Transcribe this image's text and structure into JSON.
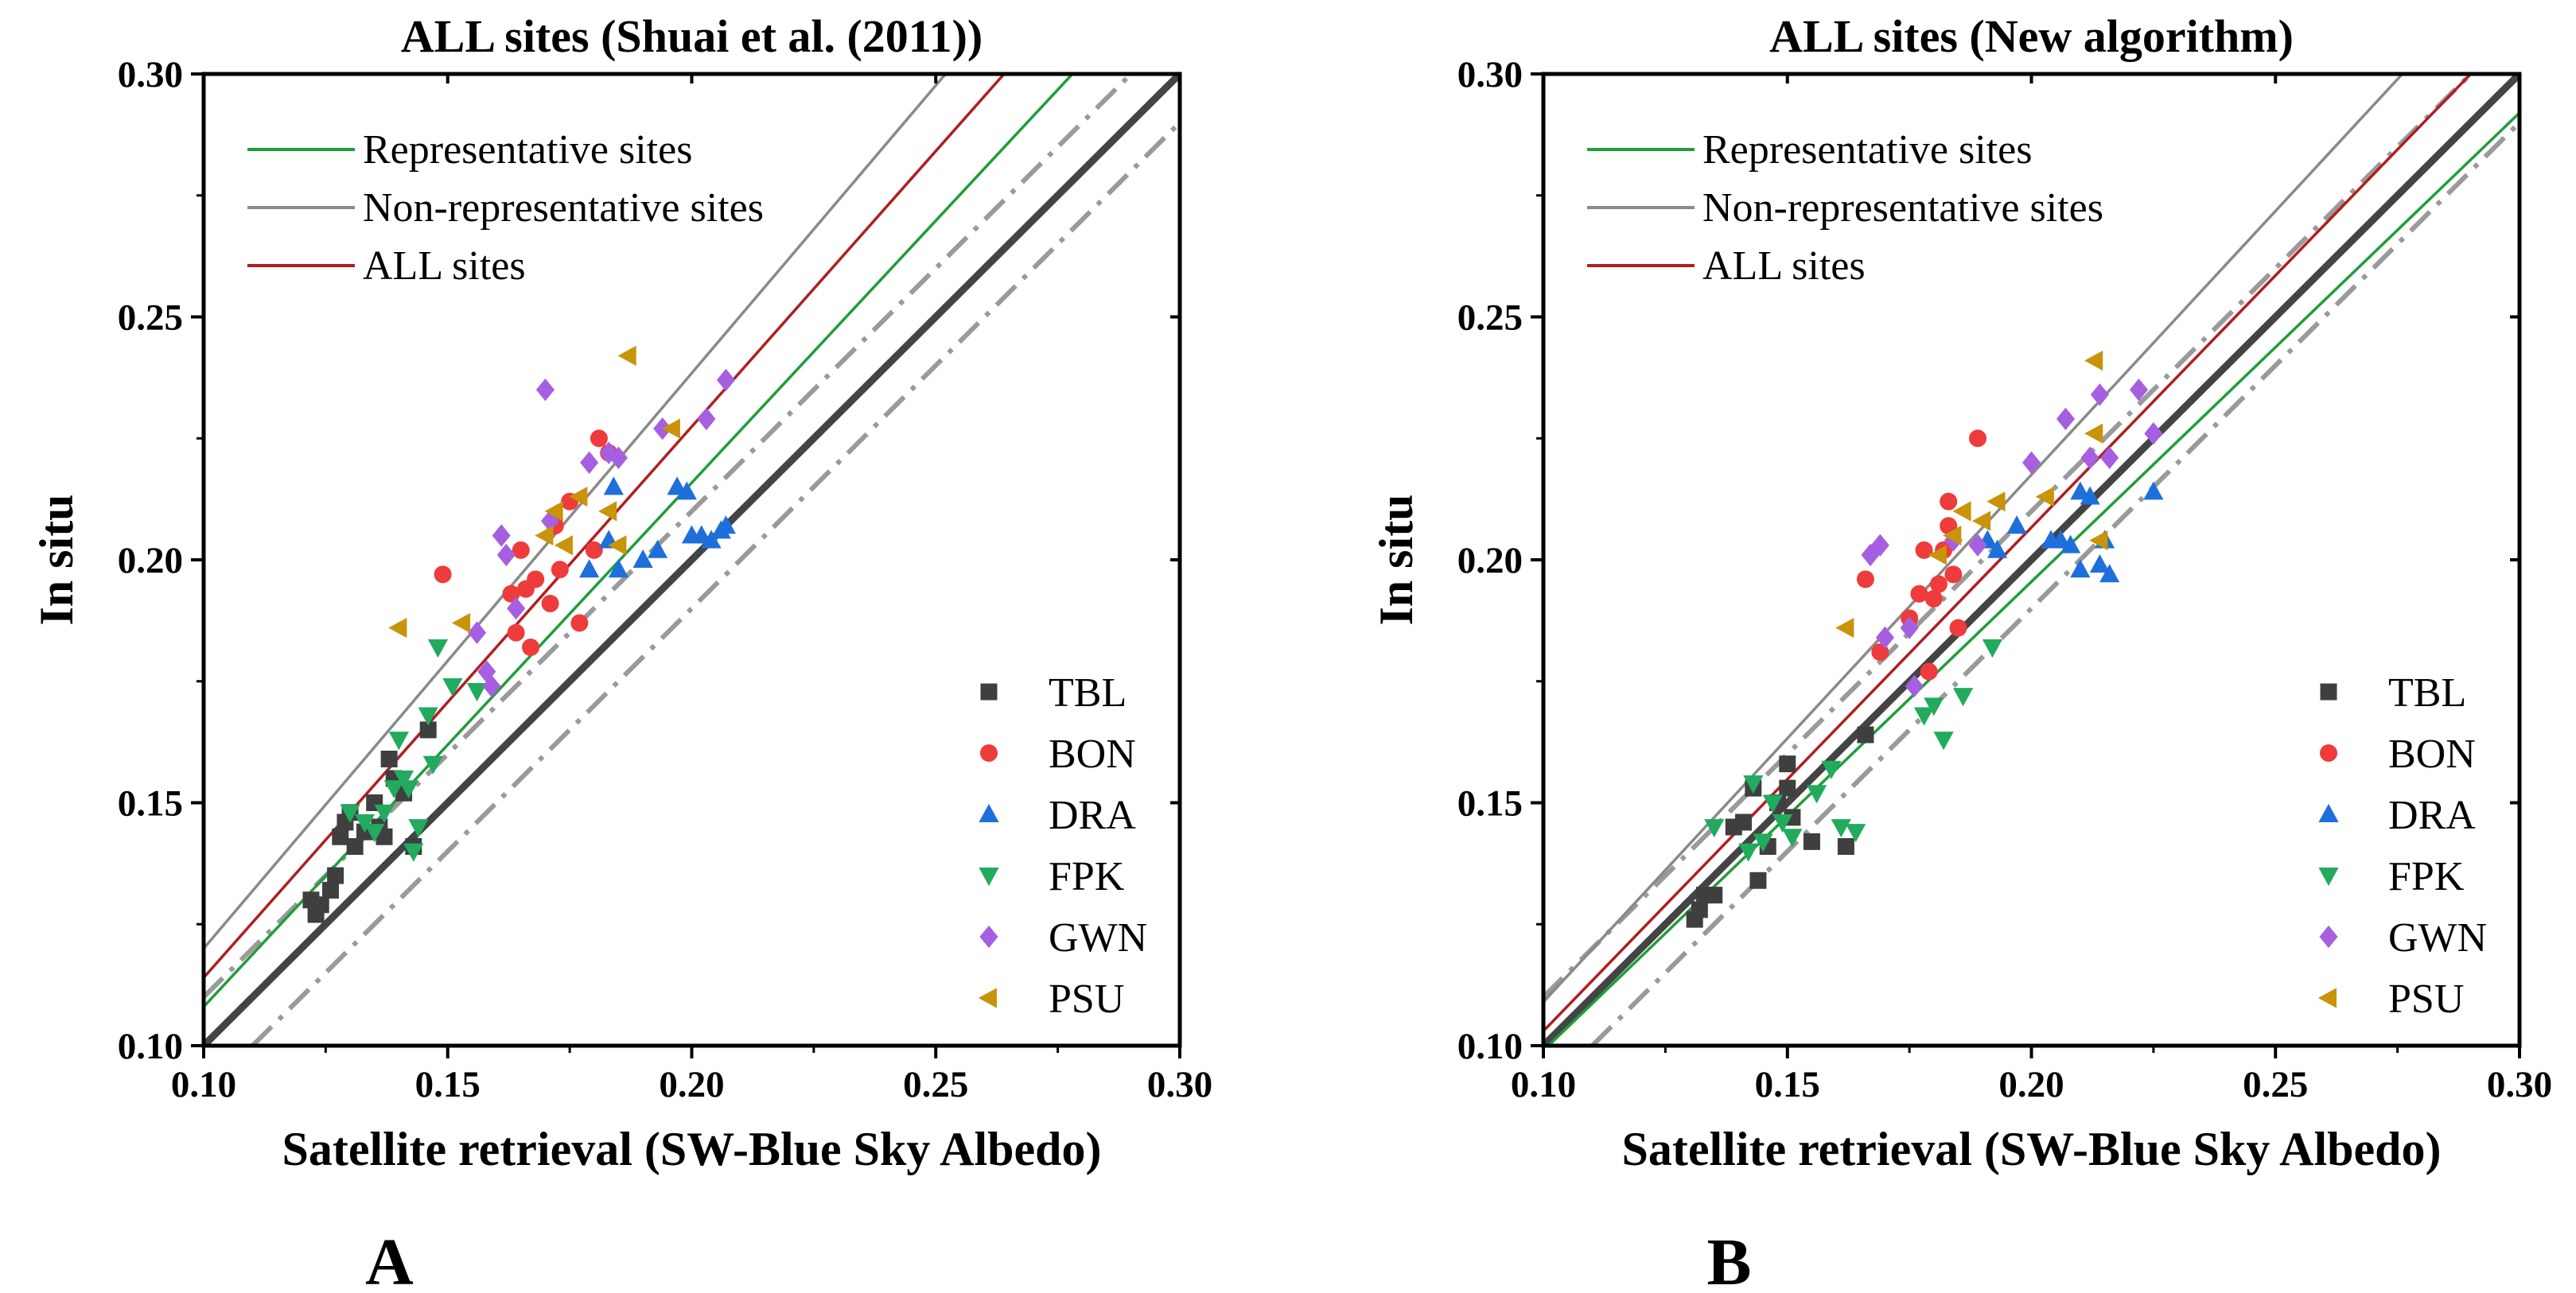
{
  "chart_data": [
    {
      "type": "scatter",
      "panel_label": "A",
      "title": "ALL sites (Shuai et al. (2011))",
      "xlabel": "Satellite retrieval (SW-Blue Sky Albedo)",
      "ylabel": "In situ",
      "xlim": [
        0.1,
        0.3
      ],
      "ylim": [
        0.1,
        0.3
      ],
      "xticks": [
        "0.10",
        "0.15",
        "0.20",
        "0.25",
        "0.30"
      ],
      "yticks": [
        "0.10",
        "0.15",
        "0.20",
        "0.25",
        "0.30"
      ],
      "fit_lines": [
        {
          "name": "Representative sites",
          "color": "#1f9e3a",
          "points": [
            [
              0.1,
              0.108
            ],
            [
              0.278,
              0.3
            ]
          ]
        },
        {
          "name": "Non-representative sites",
          "color": "#8a8a8a",
          "points": [
            [
              0.1,
              0.12
            ],
            [
              0.252,
              0.3
            ]
          ]
        },
        {
          "name": "ALL sites",
          "color": "#b01e23",
          "points": [
            [
              0.1,
              0.114
            ],
            [
              0.264,
              0.3
            ]
          ]
        }
      ],
      "reference_lines": [
        {
          "kind": "1:1",
          "color": "#444444",
          "points": [
            [
              0.1,
              0.1
            ],
            [
              0.3,
              0.3
            ]
          ]
        },
        {
          "kind": "+0.01",
          "color": "#9a9a9a",
          "points": [
            [
              0.1,
              0.11
            ],
            [
              0.29,
              0.3
            ]
          ]
        },
        {
          "kind": "-0.01",
          "color": "#9a9a9a",
          "points": [
            [
              0.11,
              0.1
            ],
            [
              0.3,
              0.29
            ]
          ]
        }
      ],
      "series": [
        {
          "name": "TBL",
          "color": "#3f3f3f",
          "marker": "square",
          "points": [
            [
              0.122,
              0.13
            ],
            [
              0.123,
              0.127
            ],
            [
              0.124,
              0.129
            ],
            [
              0.126,
              0.132
            ],
            [
              0.127,
              0.135
            ],
            [
              0.128,
              0.143
            ],
            [
              0.129,
              0.146
            ],
            [
              0.13,
              0.148
            ],
            [
              0.131,
              0.141
            ],
            [
              0.133,
              0.144
            ],
            [
              0.135,
              0.15
            ],
            [
              0.136,
              0.145
            ],
            [
              0.137,
              0.143
            ],
            [
              0.138,
              0.159
            ],
            [
              0.139,
              0.155
            ],
            [
              0.141,
              0.152
            ],
            [
              0.143,
              0.141
            ],
            [
              0.146,
              0.165
            ]
          ]
        },
        {
          "name": "BON",
          "color": "#ee3b3b",
          "marker": "circle",
          "points": [
            [
              0.149,
              0.197
            ],
            [
              0.163,
              0.193
            ],
            [
              0.164,
              0.185
            ],
            [
              0.165,
              0.202
            ],
            [
              0.166,
              0.194
            ],
            [
              0.167,
              0.182
            ],
            [
              0.168,
              0.196
            ],
            [
              0.171,
              0.191
            ],
            [
              0.173,
              0.198
            ],
            [
              0.175,
              0.212
            ],
            [
              0.177,
              0.187
            ],
            [
              0.18,
              0.202
            ],
            [
              0.181,
              0.225
            ],
            [
              0.183,
              0.222
            ],
            [
              0.172,
              0.207
            ]
          ]
        },
        {
          "name": "DRA",
          "color": "#1f6fdb",
          "marker": "triangle-up",
          "points": [
            [
              0.179,
              0.198
            ],
            [
              0.183,
              0.204
            ],
            [
              0.184,
              0.215
            ],
            [
              0.185,
              0.198
            ],
            [
              0.19,
              0.2
            ],
            [
              0.193,
              0.202
            ],
            [
              0.197,
              0.215
            ],
            [
              0.199,
              0.214
            ],
            [
              0.2,
              0.205
            ],
            [
              0.202,
              0.205
            ],
            [
              0.204,
              0.204
            ],
            [
              0.206,
              0.206
            ],
            [
              0.207,
              0.207
            ]
          ]
        },
        {
          "name": "FPK",
          "color": "#22aa5e",
          "marker": "triangle-down",
          "points": [
            [
              0.13,
              0.148
            ],
            [
              0.133,
              0.146
            ],
            [
              0.135,
              0.144
            ],
            [
              0.137,
              0.148
            ],
            [
              0.139,
              0.153
            ],
            [
              0.14,
              0.163
            ],
            [
              0.141,
              0.155
            ],
            [
              0.142,
              0.153
            ],
            [
              0.143,
              0.14
            ],
            [
              0.144,
              0.145
            ],
            [
              0.146,
              0.168
            ],
            [
              0.147,
              0.158
            ],
            [
              0.148,
              0.182
            ],
            [
              0.151,
              0.174
            ],
            [
              0.156,
              0.173
            ]
          ]
        },
        {
          "name": "GWN",
          "color": "#a65fe0",
          "marker": "diamond",
          "points": [
            [
              0.156,
              0.185
            ],
            [
              0.158,
              0.177
            ],
            [
              0.159,
              0.174
            ],
            [
              0.161,
              0.205
            ],
            [
              0.162,
              0.201
            ],
            [
              0.164,
              0.19
            ],
            [
              0.17,
              0.235
            ],
            [
              0.171,
              0.208
            ],
            [
              0.179,
              0.22
            ],
            [
              0.183,
              0.222
            ],
            [
              0.185,
              0.221
            ],
            [
              0.194,
              0.227
            ],
            [
              0.203,
              0.229
            ],
            [
              0.207,
              0.237
            ]
          ]
        },
        {
          "name": "PSU",
          "color": "#c9930a",
          "marker": "triangle-left",
          "points": [
            [
              0.14,
              0.186
            ],
            [
              0.153,
              0.187
            ],
            [
              0.17,
              0.205
            ],
            [
              0.172,
              0.21
            ],
            [
              0.174,
              0.203
            ],
            [
              0.177,
              0.213
            ],
            [
              0.183,
              0.21
            ],
            [
              0.185,
              0.203
            ],
            [
              0.187,
              0.242
            ],
            [
              0.196,
              0.227
            ]
          ]
        }
      ]
    },
    {
      "type": "scatter",
      "panel_label": "B",
      "title": "ALL sites (New algorithm)",
      "xlabel": "Satellite retrieval (SW-Blue Sky Albedo)",
      "ylabel": "In situ",
      "xlim": [
        0.1,
        0.3
      ],
      "ylim": [
        0.1,
        0.3
      ],
      "xticks": [
        "0.10",
        "0.15",
        "0.20",
        "0.25",
        "0.30"
      ],
      "yticks": [
        "0.10",
        "0.15",
        "0.20",
        "0.25",
        "0.30"
      ],
      "fit_lines": [
        {
          "name": "Representative sites",
          "color": "#1f9e3a",
          "points": [
            [
              0.1,
              0.099
            ],
            [
              0.3,
              0.292
            ]
          ]
        },
        {
          "name": "Non-representative sites",
          "color": "#8a8a8a",
          "points": [
            [
              0.1,
              0.109
            ],
            [
              0.276,
              0.3
            ]
          ]
        },
        {
          "name": "ALL sites",
          "color": "#b01e23",
          "points": [
            [
              0.1,
              0.103
            ],
            [
              0.29,
              0.3
            ]
          ]
        }
      ],
      "reference_lines": [
        {
          "kind": "1:1",
          "color": "#444444",
          "points": [
            [
              0.1,
              0.1
            ],
            [
              0.3,
              0.3
            ]
          ]
        },
        {
          "kind": "+0.01",
          "color": "#9a9a9a",
          "points": [
            [
              0.1,
              0.11
            ],
            [
              0.29,
              0.3
            ]
          ]
        },
        {
          "kind": "-0.01",
          "color": "#9a9a9a",
          "points": [
            [
              0.11,
              0.1
            ],
            [
              0.3,
              0.29
            ]
          ]
        }
      ],
      "series": [
        {
          "name": "TBL",
          "color": "#3f3f3f",
          "marker": "square",
          "points": [
            [
              0.131,
              0.126
            ],
            [
              0.132,
              0.128
            ],
            [
              0.133,
              0.131
            ],
            [
              0.135,
              0.131
            ],
            [
              0.139,
              0.145
            ],
            [
              0.141,
              0.146
            ],
            [
              0.143,
              0.153
            ],
            [
              0.144,
              0.134
            ],
            [
              0.146,
              0.141
            ],
            [
              0.148,
              0.15
            ],
            [
              0.15,
              0.158
            ],
            [
              0.15,
              0.153
            ],
            [
              0.151,
              0.147
            ],
            [
              0.155,
              0.142
            ],
            [
              0.162,
              0.141
            ],
            [
              0.166,
              0.164
            ]
          ]
        },
        {
          "name": "BON",
          "color": "#ee3b3b",
          "marker": "circle",
          "points": [
            [
              0.166,
              0.196
            ],
            [
              0.169,
              0.181
            ],
            [
              0.175,
              0.188
            ],
            [
              0.177,
              0.193
            ],
            [
              0.178,
              0.202
            ],
            [
              0.179,
              0.177
            ],
            [
              0.18,
              0.192
            ],
            [
              0.181,
              0.195
            ],
            [
              0.182,
              0.202
            ],
            [
              0.183,
              0.212
            ],
            [
              0.183,
              0.207
            ],
            [
              0.184,
              0.197
            ],
            [
              0.185,
              0.186
            ],
            [
              0.189,
              0.225
            ]
          ]
        },
        {
          "name": "DRA",
          "color": "#1f6fdb",
          "marker": "triangle-up",
          "points": [
            [
              0.191,
              0.204
            ],
            [
              0.193,
              0.202
            ],
            [
              0.197,
              0.207
            ],
            [
              0.204,
              0.204
            ],
            [
              0.206,
              0.204
            ],
            [
              0.208,
              0.203
            ],
            [
              0.21,
              0.198
            ],
            [
              0.21,
              0.214
            ],
            [
              0.212,
              0.213
            ],
            [
              0.214,
              0.199
            ],
            [
              0.215,
              0.204
            ],
            [
              0.216,
              0.197
            ],
            [
              0.225,
              0.214
            ]
          ]
        },
        {
          "name": "FPK",
          "color": "#22aa5e",
          "marker": "triangle-down",
          "points": [
            [
              0.135,
              0.145
            ],
            [
              0.142,
              0.14
            ],
            [
              0.143,
              0.154
            ],
            [
              0.145,
              0.142
            ],
            [
              0.147,
              0.15
            ],
            [
              0.149,
              0.146
            ],
            [
              0.151,
              0.143
            ],
            [
              0.156,
              0.152
            ],
            [
              0.159,
              0.157
            ],
            [
              0.161,
              0.145
            ],
            [
              0.164,
              0.144
            ],
            [
              0.178,
              0.168
            ],
            [
              0.18,
              0.17
            ],
            [
              0.182,
              0.163
            ],
            [
              0.186,
              0.172
            ],
            [
              0.192,
              0.182
            ]
          ]
        },
        {
          "name": "GWN",
          "color": "#a65fe0",
          "marker": "diamond",
          "points": [
            [
              0.167,
              0.201
            ],
            [
              0.169,
              0.203
            ],
            [
              0.17,
              0.184
            ],
            [
              0.175,
              0.186
            ],
            [
              0.176,
              0.174
            ],
            [
              0.184,
              0.204
            ],
            [
              0.189,
              0.203
            ],
            [
              0.2,
              0.22
            ],
            [
              0.207,
              0.229
            ],
            [
              0.212,
              0.221
            ],
            [
              0.214,
              0.234
            ],
            [
              0.216,
              0.221
            ],
            [
              0.222,
              0.235
            ],
            [
              0.225,
              0.226
            ]
          ]
        },
        {
          "name": "PSU",
          "color": "#c9930a",
          "marker": "triangle-left",
          "points": [
            [
              0.162,
              0.186
            ],
            [
              0.181,
              0.201
            ],
            [
              0.184,
              0.205
            ],
            [
              0.186,
              0.21
            ],
            [
              0.19,
              0.208
            ],
            [
              0.193,
              0.212
            ],
            [
              0.203,
              0.213
            ],
            [
              0.213,
              0.241
            ],
            [
              0.213,
              0.226
            ],
            [
              0.214,
              0.204
            ]
          ]
        }
      ]
    }
  ]
}
